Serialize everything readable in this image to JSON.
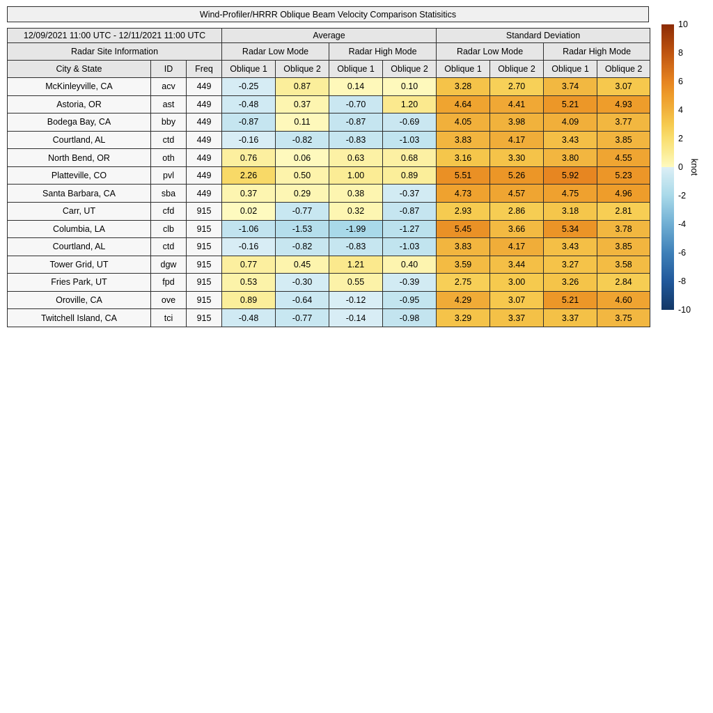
{
  "title": "Wind-Profiler/HRRR Oblique Beam Velocity Comparison Statisitics",
  "header": {
    "date_range": "12/09/2021 11:00 UTC - 12/11/2021 11:00 UTC",
    "average": "Average",
    "standard_deviation": "Standard Deviation",
    "site_info": "Radar Site Information",
    "mode_headers": [
      "Radar Low Mode",
      "Radar High Mode",
      "Radar Low Mode",
      "Radar High Mode"
    ],
    "column_headers": [
      "City & State",
      "ID",
      "Freq",
      "Oblique 1",
      "Oblique 2",
      "Oblique 1",
      "Oblique 2",
      "Oblique 1",
      "Oblique 2",
      "Oblique 1",
      "Oblique 2"
    ]
  },
  "chart_data": {
    "type": "heatmap",
    "title": "Wind-Profiler/HRRR Oblique Beam Velocity Comparison Statisitics",
    "unit_label": "knot",
    "color_range": [
      -10,
      10
    ],
    "row_header_columns": [
      "City & State",
      "ID",
      "Freq"
    ],
    "value_column_groups": [
      {
        "group": "Average",
        "mode": "Radar Low Mode",
        "columns": [
          "Oblique 1",
          "Oblique 2"
        ]
      },
      {
        "group": "Average",
        "mode": "Radar High Mode",
        "columns": [
          "Oblique 1",
          "Oblique 2"
        ]
      },
      {
        "group": "Standard Deviation",
        "mode": "Radar Low Mode",
        "columns": [
          "Oblique 1",
          "Oblique 2"
        ]
      },
      {
        "group": "Standard Deviation",
        "mode": "Radar High Mode",
        "columns": [
          "Oblique 1",
          "Oblique 2"
        ]
      }
    ],
    "rows": [
      {
        "city": "McKinleyville, CA",
        "id": "acv",
        "freq": "449",
        "values": [
          -0.25,
          0.87,
          0.14,
          0.1,
          3.28,
          2.7,
          3.74,
          3.07
        ]
      },
      {
        "city": "Astoria, OR",
        "id": "ast",
        "freq": "449",
        "values": [
          -0.48,
          0.37,
          -0.7,
          1.2,
          4.64,
          4.41,
          5.21,
          4.93
        ]
      },
      {
        "city": "Bodega Bay, CA",
        "id": "bby",
        "freq": "449",
        "values": [
          -0.87,
          0.11,
          -0.87,
          -0.69,
          4.05,
          3.98,
          4.09,
          3.77
        ]
      },
      {
        "city": "Courtland, AL",
        "id": "ctd",
        "freq": "449",
        "values": [
          -0.16,
          -0.82,
          -0.83,
          -1.03,
          3.83,
          4.17,
          3.43,
          3.85
        ]
      },
      {
        "city": "North Bend, OR",
        "id": "oth",
        "freq": "449",
        "values": [
          0.76,
          0.06,
          0.63,
          0.68,
          3.16,
          3.3,
          3.8,
          4.55
        ]
      },
      {
        "city": "Platteville, CO",
        "id": "pvl",
        "freq": "449",
        "values": [
          2.26,
          0.5,
          1.0,
          0.89,
          5.51,
          5.26,
          5.92,
          5.23
        ]
      },
      {
        "city": "Santa Barbara, CA",
        "id": "sba",
        "freq": "449",
        "values": [
          0.37,
          0.29,
          0.38,
          -0.37,
          4.73,
          4.57,
          4.75,
          4.96
        ]
      },
      {
        "city": "Carr, UT",
        "id": "cfd",
        "freq": "915",
        "values": [
          0.02,
          -0.77,
          0.32,
          -0.87,
          2.93,
          2.86,
          3.18,
          2.81
        ]
      },
      {
        "city": "Columbia, LA",
        "id": "clb",
        "freq": "915",
        "values": [
          -1.06,
          -1.53,
          -1.99,
          -1.27,
          5.45,
          3.66,
          5.34,
          3.78
        ]
      },
      {
        "city": "Courtland, AL",
        "id": "ctd",
        "freq": "915",
        "values": [
          -0.16,
          -0.82,
          -0.83,
          -1.03,
          3.83,
          4.17,
          3.43,
          3.85
        ]
      },
      {
        "city": "Tower Grid, UT",
        "id": "dgw",
        "freq": "915",
        "values": [
          0.77,
          0.45,
          1.21,
          0.4,
          3.59,
          3.44,
          3.27,
          3.58
        ]
      },
      {
        "city": "Fries Park, UT",
        "id": "fpd",
        "freq": "915",
        "values": [
          0.53,
          -0.3,
          0.55,
          -0.39,
          2.75,
          3.0,
          3.26,
          2.84
        ]
      },
      {
        "city": "Oroville, CA",
        "id": "ove",
        "freq": "915",
        "values": [
          0.89,
          -0.64,
          -0.12,
          -0.95,
          4.29,
          3.07,
          5.21,
          4.6
        ]
      },
      {
        "city": "Twitchell Island, CA",
        "id": "tci",
        "freq": "915",
        "values": [
          -0.48,
          -0.77,
          -0.14,
          -0.98,
          3.29,
          3.37,
          3.37,
          3.75
        ]
      }
    ]
  },
  "colorbar": {
    "label": "knot",
    "ticks": [
      10,
      8,
      6,
      4,
      2,
      0,
      -2,
      -4,
      -6,
      -8,
      -10
    ],
    "max": 10,
    "min": -10,
    "colormap_stops": [
      [
        10,
        "#8C2B05"
      ],
      [
        8,
        "#BF5410"
      ],
      [
        6,
        "#E68420"
      ],
      [
        5,
        "#EE9C2A"
      ],
      [
        4,
        "#F1B13C"
      ],
      [
        3,
        "#F6CA4E"
      ],
      [
        2,
        "#F9DE70"
      ],
      [
        1,
        "#FBEC95"
      ],
      [
        0.0001,
        "#FEFAC0"
      ],
      [
        -0.0001,
        "#DCEFF6"
      ],
      [
        -1,
        "#C2E4EF"
      ],
      [
        -2,
        "#A9D9E9"
      ],
      [
        -4,
        "#6FAED3"
      ],
      [
        -6,
        "#3E80B8"
      ],
      [
        -8,
        "#20589B"
      ],
      [
        -10,
        "#123766"
      ]
    ],
    "colors": {
      "border": "#2e2e2e",
      "header_bg": "#e6e6e6",
      "title_bg": "#f0f0f0",
      "info_cell_bg": "#f7f7f7"
    }
  }
}
